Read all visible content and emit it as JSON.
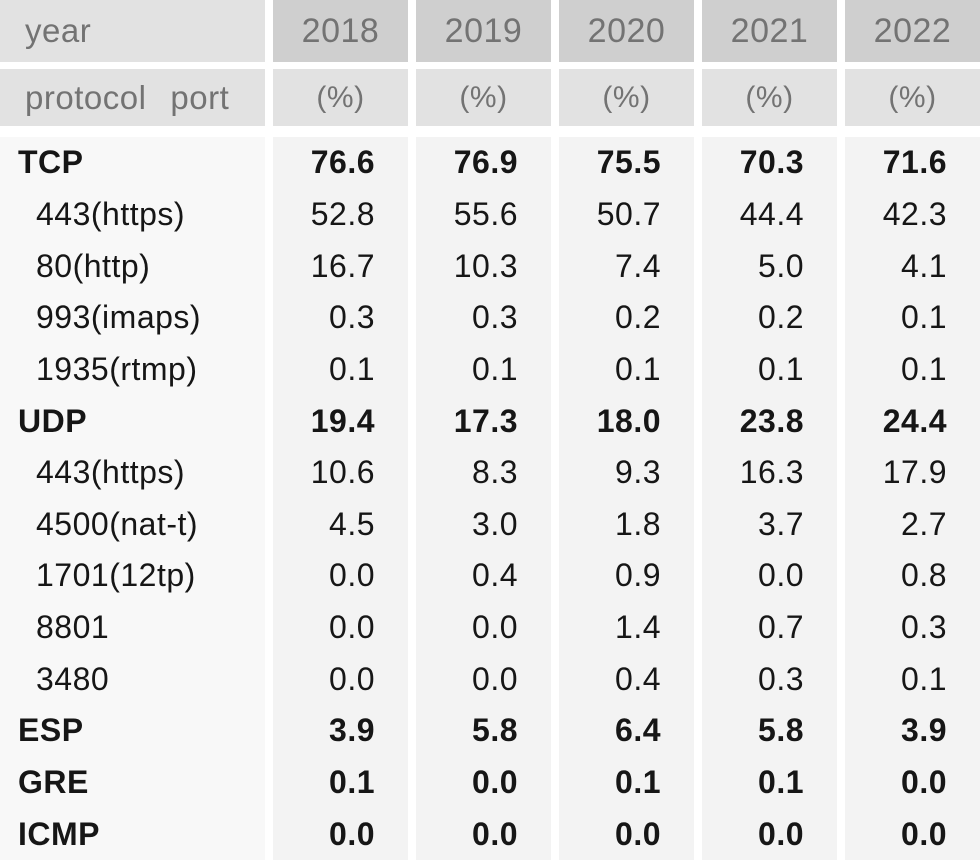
{
  "colors": {
    "year_cell_bg": "#cfcfcf",
    "header_cell_bg": "#e2e2e2",
    "body_label_col_bg": "#f8f8f8",
    "body_value_col_bg": "#f3f3f3",
    "header_text": "#737373",
    "body_text": "#161616",
    "gutter": "#ffffff"
  },
  "table": {
    "header": {
      "year_label": "year",
      "protocol_label": "protocol",
      "port_label": "port",
      "years": [
        "2018",
        "2019",
        "2020",
        "2021",
        "2022"
      ],
      "unit_label": "(%)"
    },
    "rows": [
      {
        "label": "TCP",
        "bold": true,
        "indent": false,
        "values": [
          "76.6",
          "76.9",
          "75.5",
          "70.3",
          "71.6"
        ]
      },
      {
        "label": "443(https)",
        "bold": false,
        "indent": true,
        "values": [
          "52.8",
          "55.6",
          "50.7",
          "44.4",
          "42.3"
        ]
      },
      {
        "label": "80(http)",
        "bold": false,
        "indent": true,
        "values": [
          "16.7",
          "10.3",
          "7.4",
          "5.0",
          "4.1"
        ]
      },
      {
        "label": "993(imaps)",
        "bold": false,
        "indent": true,
        "values": [
          "0.3",
          "0.3",
          "0.2",
          "0.2",
          "0.1"
        ]
      },
      {
        "label": "1935(rtmp)",
        "bold": false,
        "indent": true,
        "values": [
          "0.1",
          "0.1",
          "0.1",
          "0.1",
          "0.1"
        ]
      },
      {
        "label": "UDP",
        "bold": true,
        "indent": false,
        "values": [
          "19.4",
          "17.3",
          "18.0",
          "23.8",
          "24.4"
        ]
      },
      {
        "label": "443(https)",
        "bold": false,
        "indent": true,
        "values": [
          "10.6",
          "8.3",
          "9.3",
          "16.3",
          "17.9"
        ]
      },
      {
        "label": "4500(nat-t)",
        "bold": false,
        "indent": true,
        "values": [
          "4.5",
          "3.0",
          "1.8",
          "3.7",
          "2.7"
        ]
      },
      {
        "label": "1701(12tp)",
        "bold": false,
        "indent": true,
        "values": [
          "0.0",
          "0.4",
          "0.9",
          "0.0",
          "0.8"
        ]
      },
      {
        "label": "8801",
        "bold": false,
        "indent": true,
        "values": [
          "0.0",
          "0.0",
          "1.4",
          "0.7",
          "0.3"
        ]
      },
      {
        "label": "3480",
        "bold": false,
        "indent": true,
        "values": [
          "0.0",
          "0.0",
          "0.4",
          "0.3",
          "0.1"
        ]
      },
      {
        "label": "ESP",
        "bold": true,
        "indent": false,
        "values": [
          "3.9",
          "5.8",
          "6.4",
          "5.8",
          "3.9"
        ]
      },
      {
        "label": "GRE",
        "bold": true,
        "indent": false,
        "values": [
          "0.1",
          "0.0",
          "0.1",
          "0.1",
          "0.0"
        ]
      },
      {
        "label": "ICMP",
        "bold": true,
        "indent": false,
        "values": [
          "0.0",
          "0.0",
          "0.0",
          "0.0",
          "0.0"
        ]
      }
    ]
  },
  "chart_data": {
    "type": "table",
    "columns": [
      "protocol port",
      "2018 (%)",
      "2019 (%)",
      "2020 (%)",
      "2021 (%)",
      "2022 (%)"
    ],
    "unit": "%",
    "rows": [
      {
        "label": "TCP",
        "level": "protocol",
        "values": [
          76.6,
          76.9,
          75.5,
          70.3,
          71.6
        ]
      },
      {
        "label": "443(https)",
        "level": "port",
        "parent": "TCP",
        "values": [
          52.8,
          55.6,
          50.7,
          44.4,
          42.3
        ]
      },
      {
        "label": "80(http)",
        "level": "port",
        "parent": "TCP",
        "values": [
          16.7,
          10.3,
          7.4,
          5.0,
          4.1
        ]
      },
      {
        "label": "993(imaps)",
        "level": "port",
        "parent": "TCP",
        "values": [
          0.3,
          0.3,
          0.2,
          0.2,
          0.1
        ]
      },
      {
        "label": "1935(rtmp)",
        "level": "port",
        "parent": "TCP",
        "values": [
          0.1,
          0.1,
          0.1,
          0.1,
          0.1
        ]
      },
      {
        "label": "UDP",
        "level": "protocol",
        "values": [
          19.4,
          17.3,
          18.0,
          23.8,
          24.4
        ]
      },
      {
        "label": "443(https)",
        "level": "port",
        "parent": "UDP",
        "values": [
          10.6,
          8.3,
          9.3,
          16.3,
          17.9
        ]
      },
      {
        "label": "4500(nat-t)",
        "level": "port",
        "parent": "UDP",
        "values": [
          4.5,
          3.0,
          1.8,
          3.7,
          2.7
        ]
      },
      {
        "label": "1701(12tp)",
        "level": "port",
        "parent": "UDP",
        "values": [
          0.0,
          0.4,
          0.9,
          0.0,
          0.8
        ]
      },
      {
        "label": "8801",
        "level": "port",
        "parent": "UDP",
        "values": [
          0.0,
          0.0,
          1.4,
          0.7,
          0.3
        ]
      },
      {
        "label": "3480",
        "level": "port",
        "parent": "UDP",
        "values": [
          0.0,
          0.0,
          0.4,
          0.3,
          0.1
        ]
      },
      {
        "label": "ESP",
        "level": "protocol",
        "values": [
          3.9,
          5.8,
          6.4,
          5.8,
          3.9
        ]
      },
      {
        "label": "GRE",
        "level": "protocol",
        "values": [
          0.1,
          0.0,
          0.1,
          0.1,
          0.0
        ]
      },
      {
        "label": "ICMP",
        "level": "protocol",
        "values": [
          0.0,
          0.0,
          0.0,
          0.0,
          0.0
        ]
      }
    ]
  }
}
